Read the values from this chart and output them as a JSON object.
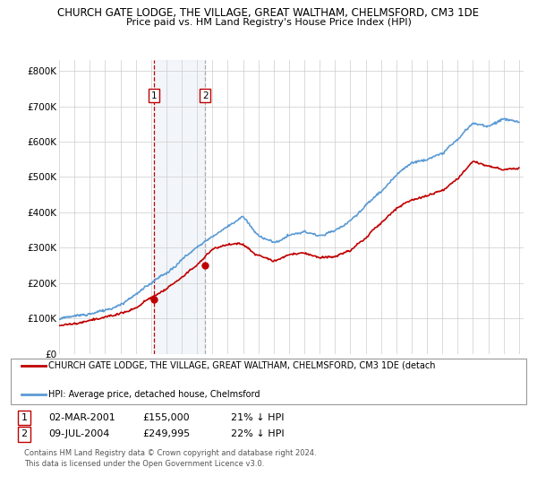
{
  "title_line1": "CHURCH GATE LODGE, THE VILLAGE, GREAT WALTHAM, CHELMSFORD, CM3 1DE",
  "title_line2": "Price paid vs. HM Land Registry's House Price Index (HPI)",
  "title_fontsize": 8.5,
  "subtitle_fontsize": 8.0,
  "ylim": [
    0,
    830000
  ],
  "yticks": [
    0,
    100000,
    200000,
    300000,
    400000,
    500000,
    600000,
    700000,
    800000
  ],
  "ytick_labels": [
    "£0",
    "£100K",
    "£200K",
    "£300K",
    "£400K",
    "£500K",
    "£600K",
    "£700K",
    "£800K"
  ],
  "hpi_color": "#5b9bd5",
  "price_color": "#c00000",
  "vline1_color": "#c00000",
  "vline2_color": "#5b9bd5",
  "shade_color": "#dce6f1",
  "purchase1_year": 2001.17,
  "purchase1_price": 155000,
  "purchase1_label": "1",
  "purchase2_year": 2004.52,
  "purchase2_price": 249995,
  "purchase2_label": "2",
  "legend_label_red": "CHURCH GATE LODGE, THE VILLAGE, GREAT WALTHAM, CHELMSFORD, CM3 1DE (detach",
  "legend_label_blue": "HPI: Average price, detached house, Chelmsford",
  "table_row1": [
    "1",
    "02-MAR-2001",
    "£155,000",
    "21% ↓ HPI"
  ],
  "table_row2": [
    "2",
    "09-JUL-2004",
    "£249,995",
    "22% ↓ HPI"
  ],
  "footnote": "Contains HM Land Registry data © Crown copyright and database right 2024.\nThis data is licensed under the Open Government Licence v3.0.",
  "bg_color": "#ffffff",
  "grid_color": "#cccccc",
  "hpi_anchors_x": [
    1995,
    1996,
    1997,
    1998,
    1999,
    2000,
    2001,
    2002,
    2003,
    2004,
    2005,
    2006,
    2007,
    2008,
    2009,
    2010,
    2011,
    2012,
    2013,
    2014,
    2015,
    2016,
    2017,
    2018,
    2019,
    2020,
    2021,
    2022,
    2023,
    2024,
    2025
  ],
  "hpi_anchors_y": [
    100000,
    108000,
    115000,
    125000,
    140000,
    165000,
    195000,
    225000,
    265000,
    300000,
    330000,
    360000,
    385000,
    330000,
    310000,
    330000,
    340000,
    330000,
    345000,
    375000,
    420000,
    460000,
    510000,
    545000,
    555000,
    570000,
    615000,
    660000,
    655000,
    670000,
    655000
  ],
  "red_anchors_x": [
    1995,
    1996,
    1997,
    1998,
    1999,
    2000,
    2001,
    2002,
    2003,
    2004,
    2005,
    2006,
    2007,
    2008,
    2009,
    2010,
    2011,
    2012,
    2013,
    2014,
    2015,
    2016,
    2017,
    2018,
    2019,
    2020,
    2021,
    2022,
    2023,
    2024,
    2025
  ],
  "red_anchors_y": [
    80000,
    85000,
    90000,
    97000,
    108000,
    125000,
    155000,
    178000,
    210000,
    250000,
    295000,
    305000,
    305000,
    268000,
    252000,
    268000,
    278000,
    265000,
    270000,
    285000,
    320000,
    360000,
    400000,
    430000,
    440000,
    452000,
    490000,
    540000,
    530000,
    520000,
    525000
  ]
}
